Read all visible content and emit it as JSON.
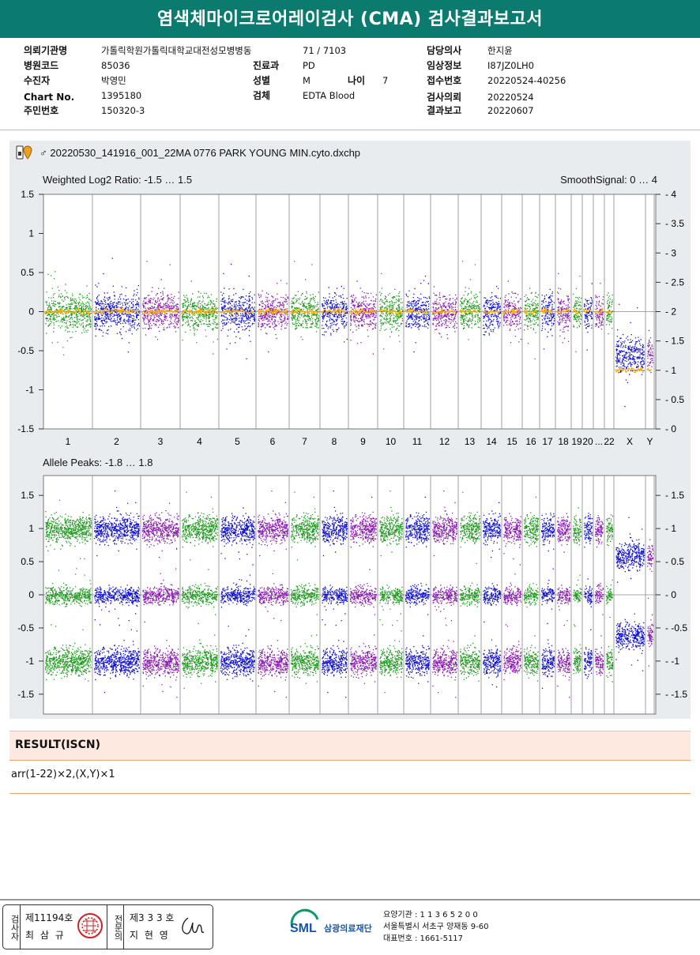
{
  "report_title": "염색체마이크로어레이검사 (CMA) 검사결과보고서",
  "info": {
    "hospital_label": "의뢰기관명",
    "hospital": "가톨릭학원가톨릭대학교대전성모병병동",
    "ward_no": "71 / 7103",
    "doctor_label": "담당의사",
    "doctor": "한지윤",
    "code_label": "병원코드",
    "code": "85036",
    "dept_label": "진료과",
    "dept": "PD",
    "clinical_label": "임상정보",
    "clinical": "I87JZ0LH0",
    "patient_label": "수진자",
    "patient": "박영민",
    "sex_label": "성별",
    "sex": "M",
    "age_label": "나이",
    "age": "7",
    "reception_label": "접수번호",
    "reception": "20220524-40256",
    "chart_label": "Chart No.",
    "chart": "1395180",
    "specimen_label": "검체",
    "specimen": "EDTA Blood",
    "request_label": "검사의뢰",
    "request": "20220524",
    "resident_label": "주민번호",
    "resident": "150320-3",
    "report_label": "결과보고",
    "report": "20220607"
  },
  "file_name": "20220530_141916_001_22MA 0776 PARK YOUNG MIN.cyto.dxchp",
  "chart_data": [
    {
      "type": "scatter",
      "title": "Weighted Log2 Ratio: -1.5 … 1.5",
      "right_title": "SmoothSignal: 0 … 4",
      "ylim": [
        -1.5,
        1.5
      ],
      "y2lim": [
        0,
        4
      ],
      "yticks": [
        "1.5",
        "1",
        "0.5",
        "0",
        "-0.5",
        "-1",
        "-1.5"
      ],
      "y2ticks": [
        "4",
        "3.5",
        "3",
        "2.5",
        "2",
        "1.5",
        "1",
        "0.5",
        "0"
      ],
      "categories": [
        "1",
        "2",
        "3",
        "4",
        "5",
        "6",
        "7",
        "8",
        "9",
        "10",
        "11",
        "12",
        "13",
        "14",
        "15",
        "16",
        "17",
        "18",
        "19",
        "20",
        "...",
        "22",
        "X",
        "Y"
      ],
      "smooth_signal": {
        "autosomes": 2,
        "X": 1,
        "Y": 1
      }
    },
    {
      "type": "scatter",
      "title": "Allele Peaks: -1.8 … 1.8",
      "ylim": [
        -1.8,
        1.8
      ],
      "yticks": [
        "1.5",
        "1",
        "0.5",
        "0",
        "-0.5",
        "-1",
        "-1.5"
      ],
      "y2ticks": [
        "1.5",
        "1",
        "0.5",
        "0",
        "-0.5",
        "-1",
        "-1.5"
      ],
      "bands_autosome": [
        1.0,
        0,
        -1.0
      ],
      "bands_X": [
        0.6,
        -0.6
      ]
    }
  ],
  "colors": {
    "green": "#1f9a1f",
    "blue": "#1010d0",
    "purple": "#8a1bb0",
    "orange": "#ffb000",
    "header": "#0c7b6f"
  },
  "result": {
    "heading": "RESULT(ISCN)",
    "value": "arr(1-22)×2,(X,Y)×1"
  },
  "footer": {
    "inspector_label": "검사자",
    "inspector_no": "제11194호",
    "inspector_name": "최 삼 규",
    "specialist_label": "전문의",
    "specialist_no": "제3 3 3 호",
    "specialist_name": "지 현 영",
    "logo": "SML",
    "org": "삼광의료재단",
    "line1": "요양기관 : 1 1 3 6 5 2 0 0",
    "line2": "서울특별시 서초구 양재동 9-60",
    "line3": "대표번호 : 1661-5117"
  }
}
